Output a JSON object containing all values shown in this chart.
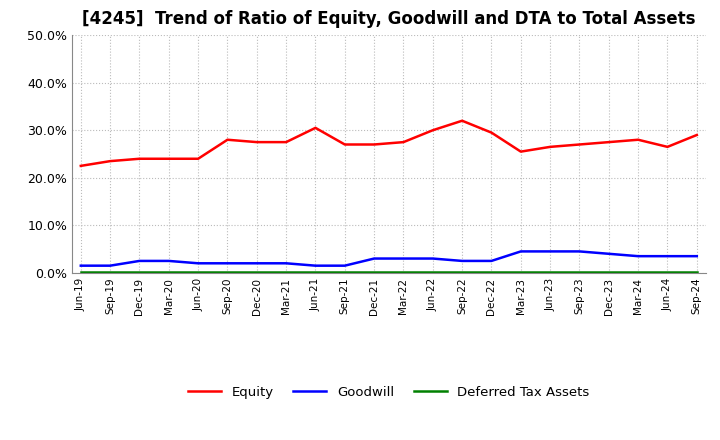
{
  "title": "[4245]  Trend of Ratio of Equity, Goodwill and DTA to Total Assets",
  "x_labels": [
    "Jun-19",
    "Sep-19",
    "Dec-19",
    "Mar-20",
    "Jun-20",
    "Sep-20",
    "Dec-20",
    "Mar-21",
    "Jun-21",
    "Sep-21",
    "Dec-21",
    "Mar-22",
    "Jun-22",
    "Sep-22",
    "Dec-22",
    "Mar-23",
    "Jun-23",
    "Sep-23",
    "Dec-23",
    "Mar-24",
    "Jun-24",
    "Sep-24"
  ],
  "equity": [
    22.5,
    23.5,
    24.0,
    24.0,
    24.0,
    28.0,
    27.5,
    27.5,
    30.5,
    27.0,
    27.0,
    27.5,
    30.0,
    32.0,
    29.5,
    25.5,
    26.5,
    27.0,
    27.5,
    28.0,
    26.5,
    29.0
  ],
  "goodwill": [
    1.5,
    1.5,
    2.5,
    2.5,
    2.0,
    2.0,
    2.0,
    2.0,
    1.5,
    1.5,
    3.0,
    3.0,
    3.0,
    2.5,
    2.5,
    4.5,
    4.5,
    4.5,
    4.0,
    3.5,
    3.5,
    3.5
  ],
  "dta": [
    0.2,
    0.2,
    0.2,
    0.2,
    0.2,
    0.2,
    0.2,
    0.2,
    0.2,
    0.2,
    0.2,
    0.2,
    0.2,
    0.2,
    0.2,
    0.2,
    0.2,
    0.2,
    0.2,
    0.2,
    0.2,
    0.2
  ],
  "equity_color": "#FF0000",
  "goodwill_color": "#0000FF",
  "dta_color": "#008000",
  "ylim": [
    0,
    50
  ],
  "yticks": [
    0,
    10,
    20,
    30,
    40,
    50
  ],
  "background_color": "#FFFFFF",
  "plot_bg_color": "#FFFFFF",
  "grid_color": "#BBBBBB",
  "title_fontsize": 12,
  "legend_labels": [
    "Equity",
    "Goodwill",
    "Deferred Tax Assets"
  ]
}
